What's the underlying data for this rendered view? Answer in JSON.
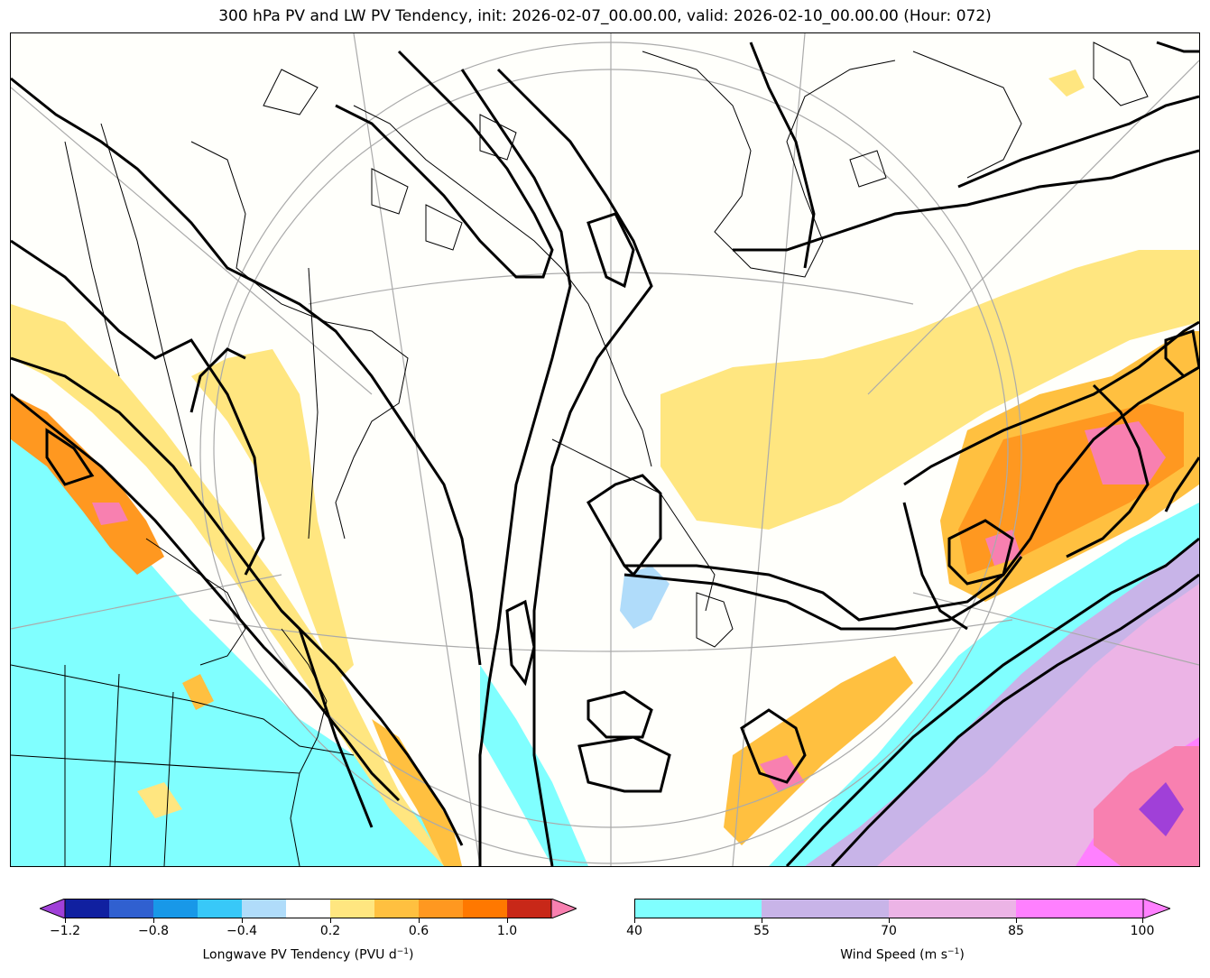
{
  "title": "300 hPa PV and LW PV Tendency, init: 2026-02-07_00.00.00, valid: 2026-02-10_00.00.00 (Hour: 072)",
  "colors": {
    "pv_neg": [
      "#a040d8",
      "#1020a0",
      "#3060d0",
      "#1898e8",
      "#38c8f8",
      "#b0dcfa"
    ],
    "pv_neutral": "#ffffff",
    "pv_pos": [
      "#ffe680",
      "#ffc040",
      "#ff9820",
      "#ff7800",
      "#ff4010",
      "#c82818",
      "#f880b0"
    ],
    "wind": [
      "#80ffff",
      "#c8b4e8",
      "#ecb4e6",
      "#ff80ff"
    ],
    "contour": "#000000",
    "graticule": "#aaaaaa"
  },
  "colorbars": {
    "pv": {
      "label": "Longwave PV Tendency (PVU d",
      "label_sup": "−1",
      "label_end": ")",
      "ticks": [
        "−1.2",
        "−0.8",
        "−0.4",
        "0.2",
        "0.6",
        "1.0"
      ]
    },
    "wind": {
      "label": "Wind Speed (m s",
      "label_sup": "−1",
      "label_end": ")",
      "ticks": [
        "40",
        "55",
        "70",
        "85",
        "100"
      ]
    }
  }
}
